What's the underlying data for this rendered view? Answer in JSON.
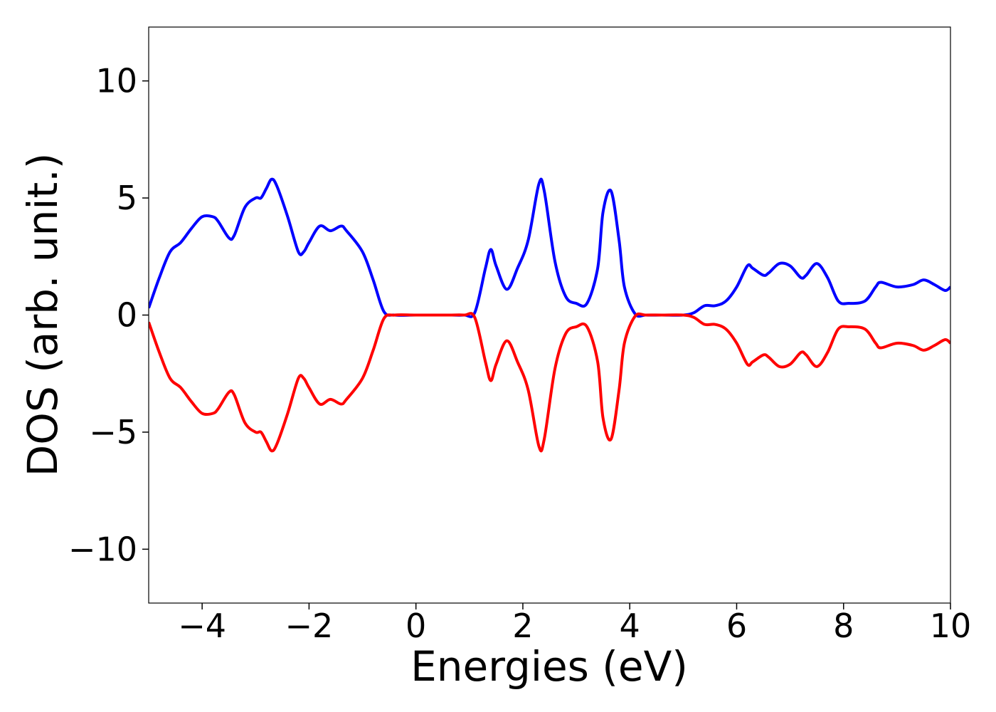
{
  "chart_data": {
    "type": "line",
    "title": "",
    "xlabel": "Energies (eV)",
    "ylabel": "DOS (arb. unit.)",
    "xlim": [
      -5,
      10
    ],
    "ylim": [
      -12.3,
      12.3
    ],
    "xticks": [
      -4,
      -2,
      0,
      2,
      4,
      6,
      8,
      10
    ],
    "xtick_labels": [
      "−4",
      "−2",
      "0",
      "2",
      "4",
      "6",
      "8",
      "10"
    ],
    "yticks": [
      10,
      5,
      0,
      -5,
      -10
    ],
    "ytick_labels": [
      "10",
      "5",
      "0",
      "−5",
      "−10"
    ],
    "grid": false,
    "legend": "none",
    "series": [
      {
        "color": "#0000ff",
        "x": [
          -5.0,
          -4.8,
          -4.6,
          -4.4,
          -4.2,
          -4.0,
          -3.8,
          -3.7,
          -3.5,
          -3.4,
          -3.2,
          -3.0,
          -2.9,
          -2.8,
          -2.7,
          -2.6,
          -2.4,
          -2.2,
          -2.1,
          -2.0,
          -1.8,
          -1.6,
          -1.4,
          -1.3,
          -1.0,
          -0.8,
          -0.6,
          -0.4,
          0.0,
          0.6,
          0.9,
          1.1,
          1.3,
          1.4,
          1.5,
          1.7,
          1.9,
          2.1,
          2.3,
          2.4,
          2.6,
          2.8,
          3.0,
          3.2,
          3.4,
          3.5,
          3.65,
          3.8,
          3.9,
          4.1,
          4.3,
          4.6,
          5.0,
          5.2,
          5.4,
          5.6,
          5.8,
          6.0,
          6.2,
          6.3,
          6.5,
          6.6,
          6.8,
          7.0,
          7.2,
          7.3,
          7.5,
          7.7,
          7.9,
          8.1,
          8.4,
          8.6,
          8.7,
          9.0,
          9.3,
          9.5,
          9.7,
          9.9,
          10.0
        ],
        "values": [
          0.3,
          1.6,
          2.7,
          3.1,
          3.7,
          4.2,
          4.2,
          4.0,
          3.3,
          3.4,
          4.6,
          5.0,
          5.0,
          5.4,
          5.8,
          5.5,
          4.2,
          2.7,
          2.7,
          3.1,
          3.8,
          3.6,
          3.8,
          3.6,
          2.7,
          1.5,
          0.15,
          0.0,
          0.0,
          0.0,
          0.0,
          0.1,
          2.0,
          2.8,
          2.1,
          1.1,
          2.0,
          3.2,
          5.6,
          5.3,
          2.3,
          0.8,
          0.5,
          0.5,
          2.0,
          4.4,
          5.3,
          3.2,
          1.2,
          0.05,
          0.0,
          0.0,
          0.0,
          0.1,
          0.4,
          0.4,
          0.6,
          1.2,
          2.1,
          2.0,
          1.7,
          1.8,
          2.2,
          2.1,
          1.6,
          1.7,
          2.2,
          1.6,
          0.6,
          0.5,
          0.6,
          1.2,
          1.4,
          1.2,
          1.3,
          1.5,
          1.3,
          1.05,
          1.2
        ]
      },
      {
        "color": "#ff0000",
        "x": [
          -5.0,
          -4.8,
          -4.6,
          -4.4,
          -4.2,
          -4.0,
          -3.8,
          -3.7,
          -3.5,
          -3.4,
          -3.2,
          -3.0,
          -2.9,
          -2.8,
          -2.7,
          -2.6,
          -2.4,
          -2.2,
          -2.1,
          -2.0,
          -1.8,
          -1.6,
          -1.4,
          -1.3,
          -1.0,
          -0.8,
          -0.6,
          -0.4,
          0.0,
          0.6,
          0.9,
          1.1,
          1.3,
          1.4,
          1.5,
          1.7,
          1.9,
          2.1,
          2.3,
          2.4,
          2.6,
          2.8,
          3.0,
          3.2,
          3.4,
          3.5,
          3.65,
          3.8,
          3.9,
          4.1,
          4.3,
          4.6,
          5.0,
          5.2,
          5.4,
          5.6,
          5.8,
          6.0,
          6.2,
          6.3,
          6.5,
          6.6,
          6.8,
          7.0,
          7.2,
          7.3,
          7.5,
          7.7,
          7.9,
          8.1,
          8.4,
          8.6,
          8.7,
          9.0,
          9.3,
          9.5,
          9.7,
          9.9,
          10.0
        ],
        "values": [
          -0.3,
          -1.6,
          -2.7,
          -3.1,
          -3.7,
          -4.2,
          -4.2,
          -4.0,
          -3.3,
          -3.4,
          -4.6,
          -5.0,
          -5.0,
          -5.4,
          -5.8,
          -5.5,
          -4.2,
          -2.7,
          -2.7,
          -3.1,
          -3.8,
          -3.6,
          -3.8,
          -3.6,
          -2.7,
          -1.5,
          -0.15,
          0.0,
          0.0,
          0.0,
          0.0,
          -0.1,
          -2.0,
          -2.8,
          -2.1,
          -1.1,
          -2.0,
          -3.2,
          -5.6,
          -5.3,
          -2.3,
          -0.8,
          -0.5,
          -0.5,
          -2.0,
          -4.4,
          -5.3,
          -3.2,
          -1.2,
          -0.05,
          0.0,
          0.0,
          0.0,
          -0.1,
          -0.4,
          -0.4,
          -0.6,
          -1.2,
          -2.1,
          -2.0,
          -1.7,
          -1.8,
          -2.2,
          -2.1,
          -1.6,
          -1.7,
          -2.2,
          -1.6,
          -0.6,
          -0.5,
          -0.6,
          -1.2,
          -1.4,
          -1.2,
          -1.3,
          -1.5,
          -1.3,
          -1.05,
          -1.2
        ]
      }
    ]
  }
}
